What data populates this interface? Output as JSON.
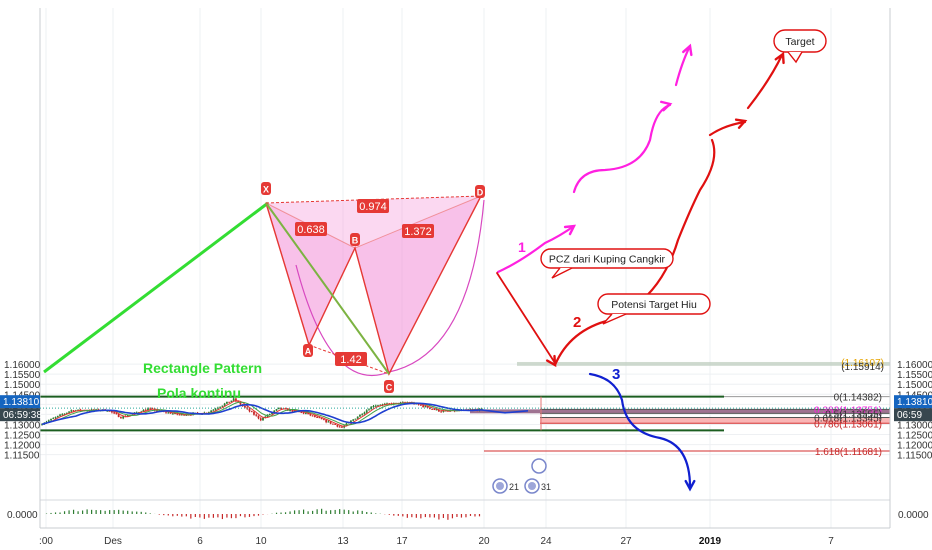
{
  "colors": {
    "candle_up": "#2e7d32",
    "candle_down": "#c62828",
    "pattern_fill": "#f48fd8",
    "pattern_line": "#e53935",
    "green_channel": "#33dd33",
    "support_line": "#1b5e20",
    "ma_blue": "#1f3fd0",
    "target_box": "#b7c7b7",
    "hiu_box": "#f7a3a3",
    "pcz_box": "#8e5a7e",
    "magenta": "#ff20e0",
    "red_arrow": "#e01010",
    "blue_path": "#1020d0"
  },
  "chart_data": {
    "type": "candlestick",
    "ylim": [
      1.1145,
      1.1635
    ],
    "y_ticks": [
      "1.16000",
      "1.15500",
      "1.15000",
      "1.14500",
      "1.14000",
      "1.13500",
      "1.13000",
      "1.12500",
      "1.12000",
      "1.11500"
    ],
    "x_ticks": [
      ":00",
      "Des",
      "6",
      "10",
      "13",
      "17",
      "20",
      "24",
      "27",
      "2019",
      "7"
    ],
    "current_price": "1.13810",
    "countdown": "06:59",
    "countdown_left": "06:59:38",
    "oscillator_tick": "0.0000",
    "fib_levels": [
      {
        "label": "0(1.14382)",
        "value": 1.14382
      },
      {
        "label": "0.382(1.13751)",
        "value": 1.13751
      },
      {
        "label": "0.5(1.13555)",
        "value": 1.13555
      },
      {
        "label": "0.618(1.13345)",
        "value": 1.13345
      },
      {
        "label": "0.786(1.13061)",
        "value": 1.13061
      },
      {
        "label": "1.618(1.11681)",
        "value": 1.11681
      }
    ],
    "target_box_labels": [
      "(1.16107)",
      "(1.15914)"
    ],
    "pattern_points": [
      "X",
      "A",
      "B",
      "C",
      "D"
    ],
    "pattern_ratios": [
      "0.974",
      "0.638",
      "1.372",
      "1.42"
    ],
    "annotations": {
      "rectangle": "Rectangle Pattern",
      "pola": "Pola kontinu",
      "pcz": "PCZ dari Kuping Cangkir",
      "hiu": "Potensi Target Hiu",
      "target": "Target",
      "n1": "1",
      "n2": "2",
      "n3": "3"
    },
    "events": [
      "21",
      "31"
    ]
  }
}
